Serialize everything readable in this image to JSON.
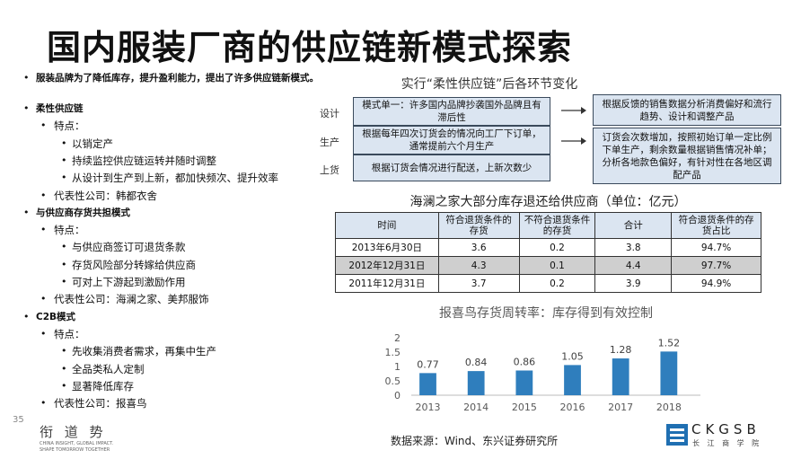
{
  "header": {
    "title": "国内服装厂商的供应链新模式探索"
  },
  "outline": {
    "intro": "服装品牌为了降低库存，提升盈利能力，提出了许多供应链新模式。",
    "sections": [
      {
        "title": "柔性供应链",
        "feature_label": "特点：",
        "features": [
          "以销定产",
          "持续监控供应链运转并随时调整",
          "从设计到生产到上新，都加快频次、提升效率"
        ],
        "company": "代表性公司：韩都衣舍"
      },
      {
        "title": "与供应商存货共担模式",
        "feature_label": "特点：",
        "features": [
          "与供应商签订可退货条款",
          "存货风险部分转嫁给供应商",
          "可对上下游起到激励作用"
        ],
        "company": "代表性公司：海澜之家、美邦服饰"
      },
      {
        "title": "C2B模式",
        "feature_label": "特点：",
        "features": [
          "先收集消费者需求，再集中生产",
          "全品类私人定制",
          "显著降低库存"
        ],
        "company": "代表性公司：报喜鸟"
      }
    ]
  },
  "diagram": {
    "title": "实行“柔性供应链”后各环节变化",
    "stages": [
      "设计",
      "生产",
      "上货"
    ],
    "before": [
      "模式单一：许多国内品牌抄袭国外品牌且有滞后性",
      "根据每年四次订货会的情况向工厂下订单，通常提前六个月生产",
      "根据订货会情况进行配送，上新次数少"
    ],
    "after": [
      "根据反馈的销售数据分析消费偏好和流行趋势、设计和调整产品",
      "订货会次数增加，按照初始订单一定比例下单生产，剩余数量根据销售情况补单；分析各地款色偏好，有针对性在各地区调配产品"
    ]
  },
  "table": {
    "title": "海澜之家大部分库存退还给供应商（单位：亿元）",
    "columns": [
      "时间",
      "符合退货条件的存货",
      "不符合退货条件的存货",
      "合计",
      "符合退货条件的存货占比"
    ],
    "rows": [
      [
        "2013年6月30日",
        "3.6",
        "0.2",
        "3.8",
        "94.7%"
      ],
      [
        "2012年12月31日",
        "4.3",
        "0.1",
        "4.4",
        "97.7%"
      ],
      [
        "2011年12月31日",
        "3.7",
        "0.2",
        "3.9",
        "94.9%"
      ]
    ]
  },
  "chart_data": {
    "type": "bar",
    "title": "报喜鸟存货周转率：库存得到有效控制",
    "categories": [
      "2013",
      "2014",
      "2015",
      "2016",
      "2017",
      "2018"
    ],
    "values": [
      0.77,
      0.84,
      0.86,
      1.05,
      1.28,
      1.52
    ],
    "color": "#2f7ebd",
    "ylim": [
      0,
      2
    ],
    "yticks": [
      0,
      0.5,
      1,
      1.5,
      2
    ]
  },
  "footer": {
    "page_number": "35",
    "source": "数据来源：Wind、东兴证券研究所",
    "logo_left": {
      "name": "衔 道 势",
      "tagline_1": "CHINA INSIGHT, GLOBAL IMPACT.",
      "tagline_2": "SHAPE TOMORROW TOGETHER"
    },
    "logo_right": {
      "name": "CKGSB",
      "subtitle": "长 江 商 学 院"
    }
  }
}
